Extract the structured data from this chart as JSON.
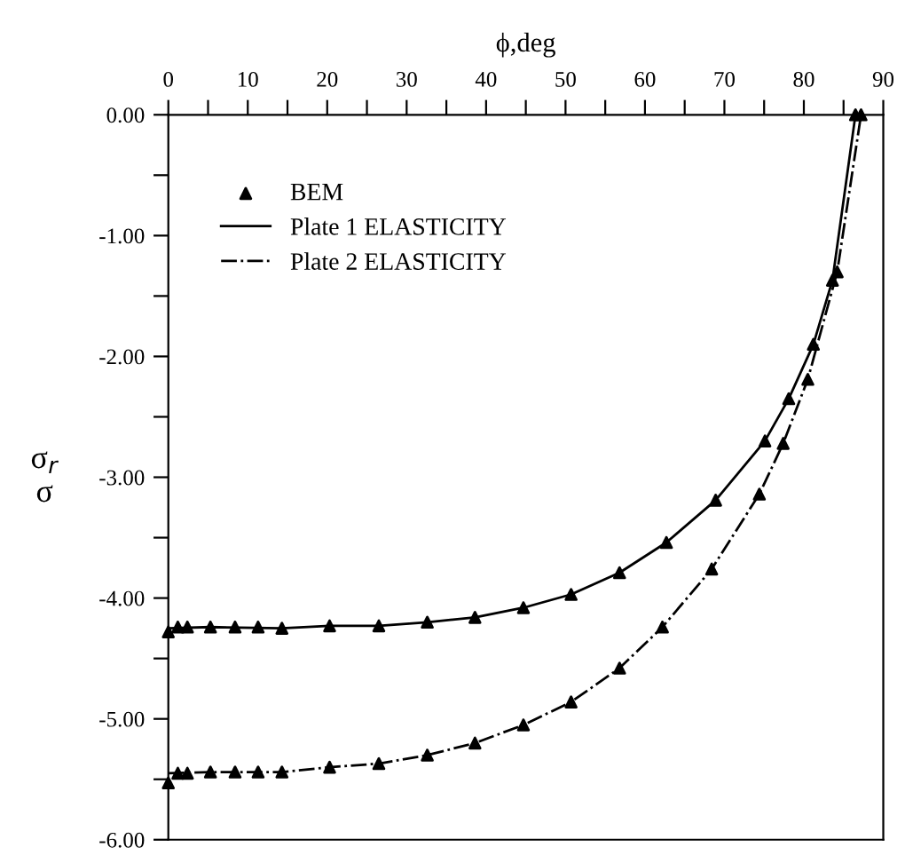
{
  "chart_data": {
    "type": "line",
    "xlabel": "ϕ,deg",
    "ylabel": "σ$_{r}$\nσ",
    "xlim": [
      0,
      90
    ],
    "ylim": [
      -6,
      0
    ],
    "xticks": [
      0,
      {
        "value": 5,
        "label": null
      },
      10,
      {
        "value": 15,
        "label": null
      },
      20,
      {
        "value": 25,
        "label": null
      },
      30,
      {
        "value": 35,
        "label": null
      },
      40,
      {
        "value": 45,
        "label": null
      },
      50,
      {
        "value": 55,
        "label": null
      },
      60,
      {
        "value": 65,
        "label": null
      },
      70,
      {
        "value": 75,
        "label": null
      },
      80,
      {
        "value": 85,
        "label": null
      },
      90
    ],
    "yticks": [
      {
        "value": 0,
        "label": "0.00"
      },
      {
        "value": -0.5,
        "label": null
      },
      {
        "value": -1,
        "label": "-1.00"
      },
      {
        "value": -1.5,
        "label": null
      },
      {
        "value": -2,
        "label": "-2.00"
      },
      {
        "value": -2.5,
        "label": null
      },
      {
        "value": -3,
        "label": "-3.00"
      },
      {
        "value": -3.5,
        "label": null
      },
      {
        "value": -4,
        "label": "-4.00"
      },
      {
        "value": -4.5,
        "label": null
      },
      {
        "value": -5,
        "label": "-5.00"
      },
      {
        "value": -5.5,
        "label": null
      },
      {
        "value": -6,
        "label": "-6.00"
      }
    ],
    "grid": false,
    "legend": "top left",
    "series": [
      {
        "name": "BEM",
        "type": "scatter",
        "marker": "triangle",
        "color": "#000000",
        "x": [
          0,
          1.2,
          2.4,
          5.3,
          8.4,
          11.3,
          14.3,
          20.3,
          26.5,
          32.6,
          38.6,
          44.7,
          50.7,
          56.8,
          62.7,
          68.9,
          75.1,
          78.1,
          81.2,
          83.6,
          86.5,
          0,
          1.2,
          2.4,
          5.3,
          8.4,
          11.3,
          14.3,
          20.3,
          26.5,
          32.6,
          38.6,
          44.7,
          50.7,
          56.8,
          62.2,
          68.4,
          74.4,
          77.4,
          80.5,
          84.2,
          87.2
        ],
        "values": [
          -4.28,
          -4.24,
          -4.24,
          -4.24,
          -4.24,
          -4.24,
          -4.25,
          -4.23,
          -4.23,
          -4.2,
          -4.16,
          -4.08,
          -3.97,
          -3.79,
          -3.54,
          -3.19,
          -2.7,
          -2.35,
          -1.9,
          -1.37,
          0,
          -5.53,
          -5.45,
          -5.45,
          -5.44,
          -5.44,
          -5.44,
          -5.44,
          -5.4,
          -5.37,
          -5.3,
          -5.2,
          -5.05,
          -4.86,
          -4.58,
          -4.24,
          -3.76,
          -3.14,
          -2.72,
          -2.19,
          -1.3,
          0
        ]
      },
      {
        "name": "Plate 1 ELASTICITY",
        "line_style": "solid",
        "color": "#000000",
        "x": [
          0,
          5.3,
          14.3,
          20.3,
          26.5,
          32.6,
          38.6,
          44.7,
          50.7,
          56.8,
          62.7,
          68.9,
          75.1,
          78.1,
          81.2,
          83.6,
          86.5
        ],
        "values": [
          -4.25,
          -4.24,
          -4.25,
          -4.23,
          -4.23,
          -4.2,
          -4.16,
          -4.08,
          -3.97,
          -3.79,
          -3.54,
          -3.19,
          -2.7,
          -2.35,
          -1.9,
          -1.37,
          0
        ]
      },
      {
        "name": "Plate 2 ELASTICITY",
        "line_style": "dashdot",
        "color": "#000000",
        "x": [
          0,
          5.3,
          14.3,
          20.3,
          26.5,
          32.6,
          38.6,
          44.7,
          50.7,
          56.8,
          62.2,
          68.4,
          74.4,
          77.4,
          80.5,
          84.2,
          87.2
        ],
        "values": [
          -5.45,
          -5.44,
          -5.44,
          -5.4,
          -5.37,
          -5.3,
          -5.2,
          -5.05,
          -4.86,
          -4.58,
          -4.24,
          -3.76,
          -3.14,
          -2.72,
          -2.19,
          -1.3,
          0
        ]
      }
    ]
  }
}
